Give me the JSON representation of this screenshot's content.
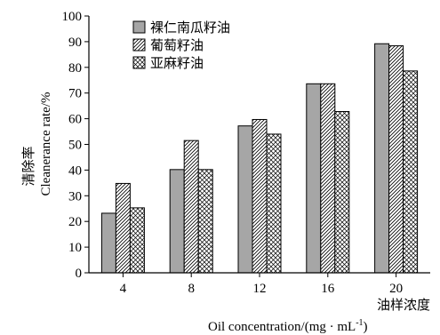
{
  "chart_data": {
    "type": "bar",
    "categories": [
      "4",
      "8",
      "12",
      "16",
      "20"
    ],
    "series": [
      {
        "name": "裸仁南瓜籽油",
        "values": [
          23.2,
          40.2,
          57.2,
          73.6,
          89.2
        ],
        "fill": "#a6a6a6",
        "pattern": "solid"
      },
      {
        "name": "葡萄籽油",
        "values": [
          34.8,
          51.5,
          59.7,
          73.6,
          88.4
        ],
        "fill": "#ffffff",
        "pattern": "diagonal"
      },
      {
        "name": "亚麻籽油",
        "values": [
          25.3,
          40.2,
          54.0,
          62.8,
          78.6
        ],
        "fill": "#ffffff",
        "pattern": "crosshatch"
      }
    ],
    "ylim": [
      0,
      100
    ],
    "yticks": [
      0,
      10,
      20,
      30,
      40,
      50,
      60,
      70,
      80,
      90,
      100
    ],
    "ylabel_cn": "清除率",
    "ylabel_en": "Cleanerance rate/%",
    "xlabel_cn": "油样浓度",
    "xlabel_en_main": "Oil concentration/(mg · mL",
    "xlabel_en_sup": "-1",
    "xlabel_en_close": ")",
    "legend_position": "top-left",
    "grid": false
  }
}
